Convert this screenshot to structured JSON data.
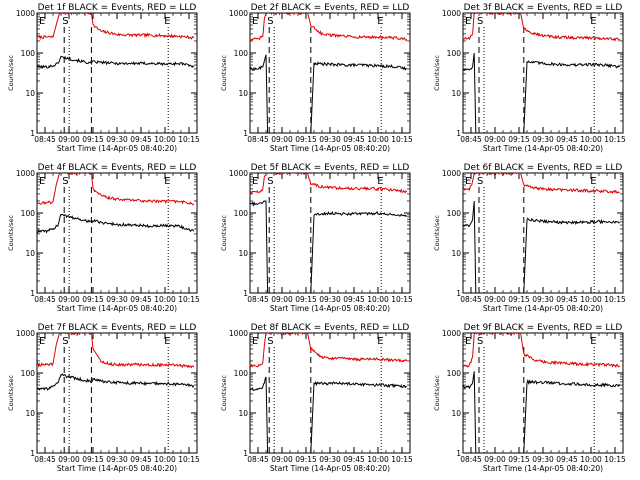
{
  "chart_data": {
    "type": "line",
    "ylabel": "Counts/sec",
    "yscale": "log",
    "ylim": [
      1,
      1000
    ],
    "yticks": [
      1,
      10,
      100,
      1000
    ],
    "xlabel": "Start Time (14-Apr-05 08:40:20)",
    "xlim": [
      "08:40",
      "10:20"
    ],
    "xticks": [
      "08:45",
      "09:00",
      "09:15",
      "09:30",
      "09:45",
      "10:00",
      "10:15"
    ],
    "series_names": [
      "Events",
      "LLD"
    ],
    "series_colors": {
      "Events": "#000000",
      "LLD": "#e00000"
    },
    "markers": [
      "E",
      "S",
      "E"
    ],
    "panels": [
      {
        "title": "Det 1f BLACK = Events, RED = LLD",
        "s_time": "08:57",
        "data_gap": [
          "09:03",
          "09:14"
        ],
        "e2_time": "10:02",
        "events": {
          "t": [
            "08:40",
            "08:46",
            "08:50",
            "08:53",
            "08:55",
            "09:14",
            "09:15",
            "09:20",
            "09:30",
            "09:40",
            "09:50",
            "10:00",
            "10:10",
            "10:18"
          ],
          "v": [
            45,
            45,
            48,
            55,
            80,
            55,
            60,
            58,
            55,
            55,
            55,
            53,
            55,
            45
          ]
        },
        "lld": {
          "t": [
            "08:40",
            "08:46",
            "08:50",
            "08:52",
            "08:54",
            "09:14",
            "09:15",
            "09:20",
            "09:25",
            "09:30",
            "09:40",
            "09:50",
            "10:00",
            "10:10",
            "10:18"
          ],
          "v": [
            250,
            250,
            250,
            500,
            1000,
            1000,
            500,
            350,
            320,
            290,
            280,
            280,
            270,
            260,
            240
          ]
        }
      },
      {
        "title": "Det 2f BLACK = Events, RED = LLD",
        "s_time": "08:52",
        "data_gap": null,
        "e2_time": "10:02",
        "events": {
          "t": [
            "08:40",
            "08:45",
            "08:48",
            "08:50",
            "08:51",
            "09:18",
            "09:20",
            "09:30",
            "09:40",
            "09:50",
            "10:00",
            "10:10",
            "10:18"
          ],
          "v": [
            40,
            40,
            45,
            90,
            1,
            1,
            55,
            52,
            50,
            50,
            48,
            46,
            40
          ]
        },
        "lld": {
          "t": [
            "08:40",
            "08:45",
            "08:48",
            "08:49",
            "08:50",
            "09:16",
            "09:18",
            "09:25",
            "09:30",
            "09:40",
            "09:50",
            "10:00",
            "10:10",
            "10:18"
          ],
          "v": [
            220,
            220,
            260,
            700,
            1000,
            1000,
            500,
            300,
            280,
            260,
            250,
            250,
            240,
            220
          ]
        }
      },
      {
        "title": "Det 3f BLACK = Events, RED = LLD",
        "s_time": "08:50",
        "data_gap": null,
        "e2_time": "10:02",
        "events": {
          "t": [
            "08:40",
            "08:44",
            "08:46",
            "08:47",
            "08:48",
            "09:18",
            "09:20",
            "09:30",
            "09:40",
            "09:50",
            "10:00",
            "10:10",
            "10:18"
          ],
          "v": [
            38,
            40,
            45,
            100,
            1,
            1,
            60,
            55,
            52,
            50,
            52,
            50,
            45
          ]
        },
        "lld": {
          "t": [
            "08:40",
            "08:44",
            "08:46",
            "08:47",
            "09:16",
            "09:18",
            "09:25",
            "09:30",
            "09:40",
            "09:50",
            "10:00",
            "10:10",
            "10:18"
          ],
          "v": [
            230,
            230,
            300,
            1000,
            1000,
            400,
            300,
            270,
            250,
            240,
            240,
            230,
            220
          ]
        }
      },
      {
        "title": "Det 4f BLACK = Events, RED = LLD",
        "s_time": "08:57",
        "data_gap": [
          "09:03",
          "09:14"
        ],
        "e2_time": "10:02",
        "events": {
          "t": [
            "08:40",
            "08:46",
            "08:50",
            "08:53",
            "08:55",
            "09:14",
            "09:15",
            "09:20",
            "09:30",
            "09:40",
            "09:50",
            "10:00",
            "10:10",
            "10:18"
          ],
          "v": [
            35,
            35,
            40,
            50,
            90,
            60,
            65,
            58,
            52,
            50,
            48,
            48,
            46,
            35
          ]
        },
        "lld": {
          "t": [
            "08:40",
            "08:46",
            "08:50",
            "08:52",
            "08:54",
            "09:14",
            "09:15",
            "09:20",
            "09:25",
            "09:30",
            "09:40",
            "09:50",
            "10:00",
            "10:10",
            "10:18"
          ],
          "v": [
            180,
            180,
            190,
            500,
            1000,
            1000,
            400,
            270,
            240,
            220,
            210,
            200,
            195,
            190,
            170
          ]
        }
      },
      {
        "title": "Det 5f BLACK = Events, RED = LLD",
        "s_time": "08:52",
        "data_gap": null,
        "e2_time": "10:02",
        "events": {
          "t": [
            "08:40",
            "08:45",
            "08:48",
            "08:50",
            "08:51",
            "09:18",
            "09:20",
            "09:30",
            "09:40",
            "09:50",
            "10:00",
            "10:10",
            "10:18"
          ],
          "v": [
            170,
            170,
            180,
            200,
            1,
            1,
            90,
            100,
            95,
            95,
            100,
            90,
            85
          ]
        },
        "lld": {
          "t": [
            "08:40",
            "08:45",
            "08:48",
            "08:49",
            "08:50",
            "09:16",
            "09:18",
            "09:25",
            "09:30",
            "09:40",
            "09:50",
            "10:00",
            "10:10",
            "10:18"
          ],
          "v": [
            330,
            330,
            400,
            800,
            1000,
            1000,
            550,
            450,
            430,
            420,
            410,
            400,
            380,
            340
          ]
        }
      },
      {
        "title": "Det 6f BLACK = Events, RED = LLD",
        "s_time": "08:50",
        "data_gap": null,
        "e2_time": "10:02",
        "events": {
          "t": [
            "08:40",
            "08:44",
            "08:46",
            "08:47",
            "08:48",
            "09:18",
            "09:20",
            "09:30",
            "09:40",
            "09:50",
            "10:00",
            "10:10",
            "10:18"
          ],
          "v": [
            50,
            50,
            70,
            200,
            1,
            1,
            70,
            62,
            58,
            58,
            60,
            62,
            58
          ]
        },
        "lld": {
          "t": [
            "08:40",
            "08:44",
            "08:46",
            "08:47",
            "09:16",
            "09:18",
            "09:25",
            "09:30",
            "09:40",
            "09:50",
            "10:00",
            "10:10",
            "10:18"
          ],
          "v": [
            400,
            400,
            600,
            1000,
            1000,
            500,
            420,
            400,
            380,
            370,
            360,
            350,
            330
          ]
        }
      },
      {
        "title": "Det 7f BLACK = Events, RED = LLD",
        "s_time": "08:57",
        "data_gap": [
          "09:03",
          "09:14"
        ],
        "e2_time": "10:02",
        "events": {
          "t": [
            "08:40",
            "08:46",
            "08:50",
            "08:53",
            "08:55",
            "09:14",
            "09:15",
            "09:20",
            "09:30",
            "09:40",
            "09:50",
            "10:00",
            "10:10",
            "10:18"
          ],
          "v": [
            40,
            40,
            45,
            55,
            90,
            60,
            70,
            62,
            58,
            56,
            55,
            55,
            52,
            48
          ]
        },
        "lld": {
          "t": [
            "08:40",
            "08:46",
            "08:50",
            "08:52",
            "08:54",
            "09:14",
            "09:15",
            "09:20",
            "09:25",
            "09:30",
            "09:40",
            "09:50",
            "10:00",
            "10:10",
            "10:18"
          ],
          "v": [
            160,
            160,
            170,
            500,
            1000,
            1000,
            400,
            200,
            170,
            160,
            165,
            160,
            160,
            155,
            140
          ]
        }
      },
      {
        "title": "Det 8f BLACK = Events, RED = LLD",
        "s_time": "08:52",
        "data_gap": null,
        "e2_time": "10:02",
        "events": {
          "t": [
            "08:40",
            "08:45",
            "08:48",
            "08:50",
            "08:51",
            "09:18",
            "09:20",
            "09:30",
            "09:40",
            "09:50",
            "10:00",
            "10:10",
            "10:18"
          ],
          "v": [
            40,
            40,
            45,
            80,
            1,
            1,
            55,
            55,
            55,
            52,
            50,
            48,
            45
          ]
        },
        "lld": {
          "t": [
            "08:40",
            "08:45",
            "08:48",
            "08:49",
            "08:50",
            "09:16",
            "09:18",
            "09:25",
            "09:30",
            "09:40",
            "09:50",
            "10:00",
            "10:10",
            "10:18"
          ],
          "v": [
            150,
            150,
            180,
            500,
            1000,
            1000,
            400,
            250,
            230,
            230,
            220,
            220,
            210,
            200
          ]
        }
      },
      {
        "title": "Det 9f BLACK = Events, RED = LLD",
        "s_time": "08:50",
        "data_gap": null,
        "e2_time": "10:02",
        "events": {
          "t": [
            "08:40",
            "08:44",
            "08:46",
            "08:47",
            "08:48",
            "09:18",
            "09:20",
            "09:30",
            "09:40",
            "09:50",
            "10:00",
            "10:10",
            "10:18"
          ],
          "v": [
            45,
            45,
            60,
            110,
            1,
            1,
            60,
            58,
            55,
            53,
            50,
            50,
            48
          ]
        },
        "lld": {
          "t": [
            "08:40",
            "08:44",
            "08:46",
            "08:47",
            "09:16",
            "09:18",
            "09:25",
            "09:30",
            "09:40",
            "09:50",
            "10:00",
            "10:10",
            "10:18"
          ],
          "v": [
            150,
            150,
            250,
            1000,
            1000,
            300,
            210,
            190,
            180,
            170,
            165,
            160,
            150
          ]
        }
      }
    ]
  }
}
